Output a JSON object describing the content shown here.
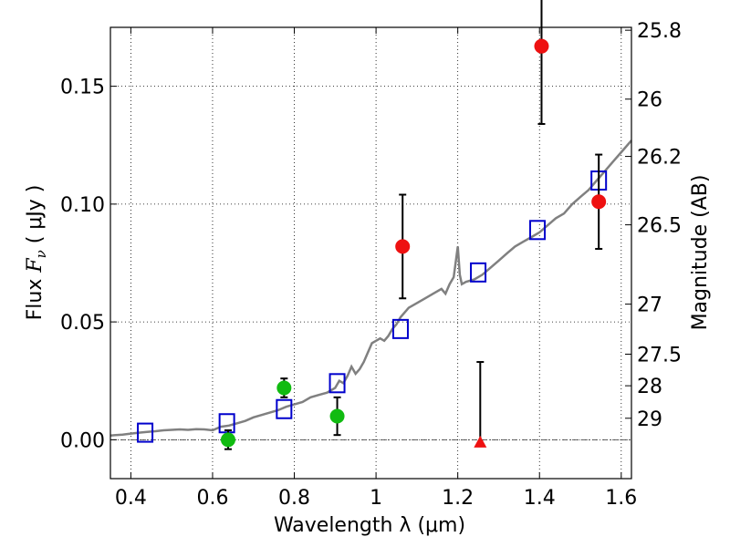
{
  "chart_data": {
    "type": "scatter",
    "xlabel": "Wavelength  λ (μm)",
    "ylabel_prefix": "Flux  ",
    "ylabel_var": "F",
    "ylabel_sub": "ν",
    "ylabel_suffix": "  ( μJy )",
    "y2label": "Magnitude (AB)",
    "xlim": [
      0.35,
      1.625
    ],
    "ylim": [
      -0.0165,
      0.175
    ],
    "grid": true,
    "x_ticks": [
      {
        "v": 0.4,
        "label": "0.4"
      },
      {
        "v": 0.6,
        "label": "0.6"
      },
      {
        "v": 0.8,
        "label": "0.8"
      },
      {
        "v": 1.0,
        "label": "1"
      },
      {
        "v": 1.2,
        "label": "1.2"
      },
      {
        "v": 1.4,
        "label": "1.4"
      },
      {
        "v": 1.6,
        "label": "1.6"
      }
    ],
    "y_ticks": [
      {
        "v": 0.0,
        "label": "0.00"
      },
      {
        "v": 0.05,
        "label": "0.05"
      },
      {
        "v": 0.1,
        "label": "0.10"
      },
      {
        "v": 0.15,
        "label": "0.15"
      }
    ],
    "mag_ticks": [
      {
        "v": 25.8,
        "label": "25.8"
      },
      {
        "v": 26,
        "label": "26"
      },
      {
        "v": 26.2,
        "label": "26.2"
      },
      {
        "v": 26.5,
        "label": "26.5"
      },
      {
        "v": 27,
        "label": "27"
      },
      {
        "v": 27.5,
        "label": "27.5"
      },
      {
        "v": 28,
        "label": "28"
      },
      {
        "v": 29,
        "label": "29"
      }
    ],
    "model_sed": {
      "color": "#808080",
      "x": [
        0.35,
        0.38,
        0.4,
        0.42,
        0.44,
        0.46,
        0.48,
        0.5,
        0.52,
        0.54,
        0.56,
        0.58,
        0.6,
        0.62,
        0.64,
        0.66,
        0.68,
        0.7,
        0.72,
        0.74,
        0.76,
        0.78,
        0.8,
        0.82,
        0.84,
        0.86,
        0.88,
        0.9,
        0.91,
        0.92,
        0.93,
        0.94,
        0.95,
        0.96,
        0.97,
        0.98,
        0.99,
        1.0,
        1.01,
        1.02,
        1.03,
        1.04,
        1.05,
        1.06,
        1.08,
        1.1,
        1.12,
        1.14,
        1.16,
        1.17,
        1.18,
        1.19,
        1.2,
        1.205,
        1.21,
        1.22,
        1.24,
        1.26,
        1.28,
        1.3,
        1.32,
        1.34,
        1.36,
        1.38,
        1.4,
        1.42,
        1.44,
        1.46,
        1.48,
        1.5,
        1.52,
        1.54,
        1.56,
        1.58,
        1.6,
        1.625
      ],
      "y": [
        0.0018,
        0.0022,
        0.0026,
        0.003,
        0.0033,
        0.0036,
        0.004,
        0.0042,
        0.0044,
        0.0042,
        0.0045,
        0.0044,
        0.004,
        0.0055,
        0.006,
        0.007,
        0.008,
        0.0095,
        0.0105,
        0.0115,
        0.0125,
        0.014,
        0.015,
        0.016,
        0.018,
        0.019,
        0.02,
        0.022,
        0.025,
        0.024,
        0.027,
        0.031,
        0.028,
        0.03,
        0.033,
        0.037,
        0.041,
        0.042,
        0.043,
        0.042,
        0.044,
        0.047,
        0.049,
        0.052,
        0.056,
        0.058,
        0.06,
        0.062,
        0.064,
        0.062,
        0.066,
        0.069,
        0.082,
        0.07,
        0.066,
        0.067,
        0.068,
        0.07,
        0.073,
        0.076,
        0.079,
        0.082,
        0.084,
        0.086,
        0.088,
        0.091,
        0.094,
        0.096,
        0.1,
        0.103,
        0.106,
        0.11,
        0.114,
        0.118,
        0.122,
        0.127
      ]
    },
    "model_bands": {
      "color": "#0000cc",
      "x": [
        0.435,
        0.635,
        0.775,
        0.905,
        1.06,
        1.25,
        1.395,
        1.545
      ],
      "y": [
        0.003,
        0.007,
        0.013,
        0.024,
        0.047,
        0.071,
        0.089,
        0.11
      ]
    },
    "optical_detections": {
      "color": "#11bb11",
      "x": [
        0.638,
        0.775,
        0.905
      ],
      "y": [
        0.0,
        0.022,
        0.01
      ],
      "err": [
        0.004,
        0.004,
        0.008
      ]
    },
    "nir_detections": {
      "color": "#ee1111",
      "x": [
        1.065,
        1.405,
        1.545
      ],
      "y": [
        0.082,
        0.167,
        0.101
      ],
      "err": [
        0.022,
        0.033,
        0.02
      ]
    },
    "upper_limit": {
      "color": "#ee1111",
      "x": 1.255,
      "y": -0.001,
      "err_top": 0.033
    }
  }
}
